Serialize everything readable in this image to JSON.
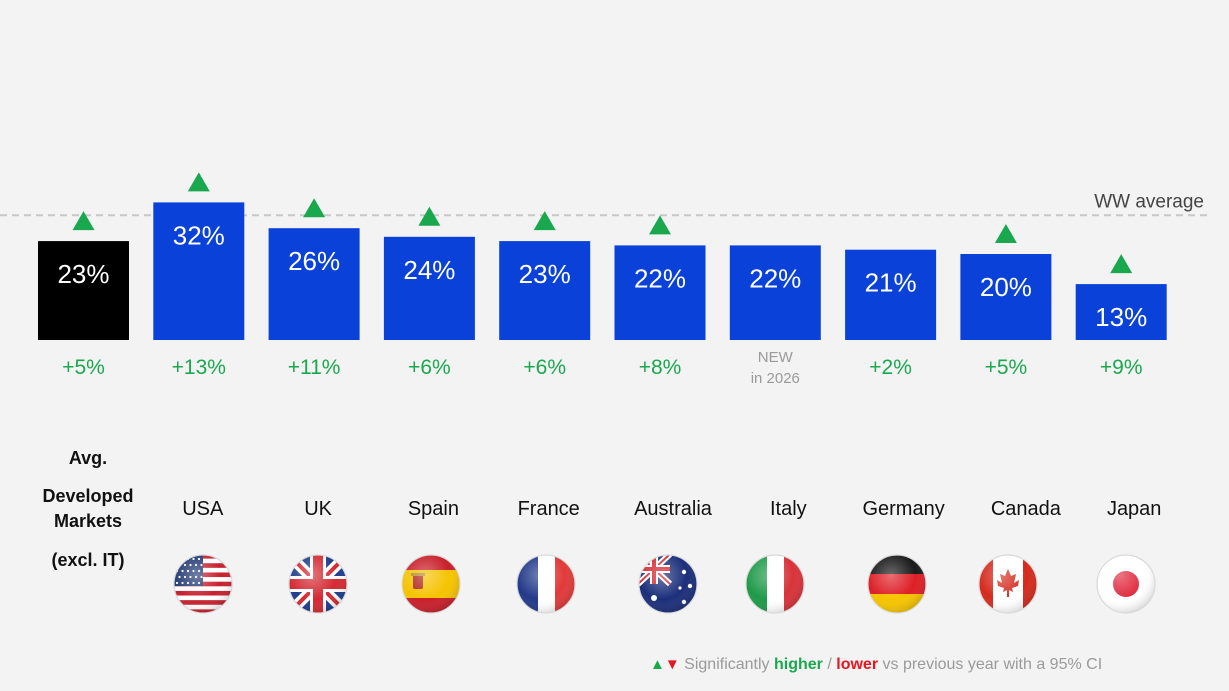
{
  "chart_data": {
    "type": "bar",
    "categories": [
      "Avg. Developed Markets (excl. IT)",
      "USA",
      "UK",
      "Spain",
      "France",
      "Australia",
      "Italy",
      "Germany",
      "Canada",
      "Japan"
    ],
    "category_lines": [
      [
        "Avg.",
        "Developed",
        "Markets",
        "(excl. IT)"
      ],
      [
        "USA"
      ],
      [
        "UK"
      ],
      [
        "Spain"
      ],
      [
        "France"
      ],
      [
        "Australia"
      ],
      [
        "Italy"
      ],
      [
        "Germany"
      ],
      [
        "Canada"
      ],
      [
        "Japan"
      ]
    ],
    "values": [
      23,
      32,
      26,
      24,
      23,
      22,
      22,
      21,
      20,
      13
    ],
    "value_labels": [
      "23%",
      "32%",
      "26%",
      "24%",
      "23%",
      "22%",
      "22%",
      "21%",
      "20%",
      "13%"
    ],
    "change_labels": [
      "+5%",
      "+13%",
      "+11%",
      "+6%",
      "+6%",
      "+8%",
      "",
      "+2%",
      "+5%",
      "+9%"
    ],
    "new_label": [
      "NEW",
      "in 2026"
    ],
    "significance": [
      "up",
      "up",
      "up",
      "up",
      "up",
      "up",
      "none",
      "none",
      "up",
      "up"
    ],
    "reference_line": {
      "label": "WW average",
      "value": 29
    },
    "colors": {
      "average_bar": "#000000",
      "country_bar": "#0a41d8",
      "up": "#1aa84f",
      "down": "#e8141f",
      "reference_line": "#c8c8c8"
    },
    "flags": [
      "us-flag-icon",
      "uk-flag-icon",
      "spain-flag-icon",
      "france-flag-icon",
      "australia-flag-icon",
      "italy-flag-icon",
      "germany-flag-icon",
      "canada-flag-icon",
      "japan-flag-icon"
    ],
    "legend": {
      "prefix": "Significantly",
      "higher": "higher",
      "separator": "/",
      "lower": "lower",
      "suffix": "vs previous year with a 95% CI"
    },
    "title": "",
    "xlabel": "",
    "ylabel": ""
  }
}
